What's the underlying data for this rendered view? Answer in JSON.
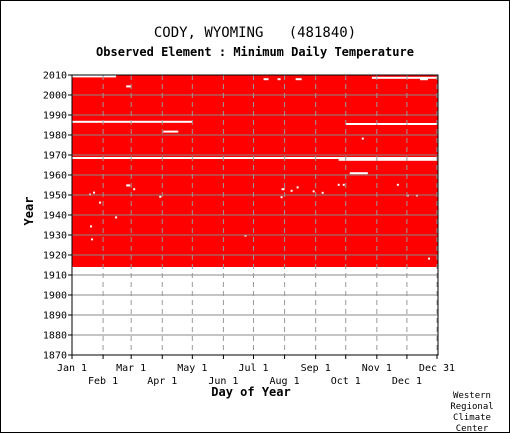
{
  "chart_data": {
    "type": "heatmap",
    "title": "CODY, WYOMING   (481840)",
    "subtitle": "Observed Element : Minimum Daily Temperature",
    "xlabel": "Day of Year",
    "ylabel": "Year",
    "xlim": [
      1,
      366
    ],
    "ylim": [
      1870,
      2010
    ],
    "y_ticks": [
      1870,
      1880,
      1890,
      1900,
      1910,
      1920,
      1930,
      1940,
      1950,
      1960,
      1970,
      1980,
      1990,
      2000,
      2010
    ],
    "x_ticks_top_row": [
      {
        "label": "Jan 1",
        "day": 1
      },
      {
        "label": "Mar 1",
        "day": 60
      },
      {
        "label": "May 1",
        "day": 121
      },
      {
        "label": "Jul 1",
        "day": 182
      },
      {
        "label": "Sep 1",
        "day": 244
      },
      {
        "label": "Nov 1",
        "day": 305
      },
      {
        "label": "Dec 31",
        "day": 365
      }
    ],
    "x_ticks_bottom_row": [
      {
        "label": "Feb 1",
        "day": 32
      },
      {
        "label": "Apr 1",
        "day": 91
      },
      {
        "label": "Jun 1",
        "day": 152
      },
      {
        "label": "Aug 1",
        "day": 213
      },
      {
        "label": "Oct 1",
        "day": 274
      },
      {
        "label": "Dec 1",
        "day": 335
      }
    ],
    "grid": true,
    "data_color": "#ff0000",
    "observed_year_range": [
      1914,
      2010
    ],
    "missing_full_lines": [
      {
        "year": 1968.5,
        "day_start": 1,
        "day_end": 366
      },
      {
        "year": 1986.6,
        "day_start": 1,
        "day_end": 121
      },
      {
        "year": 1985.5,
        "day_start": 274,
        "day_end": 366
      },
      {
        "year": 1967.6,
        "day_start": 267,
        "day_end": 366
      }
    ],
    "missing_segments": [
      {
        "year": 2009.3,
        "day_start": 1,
        "day_end": 45
      },
      {
        "year": 2008.6,
        "day_start": 300,
        "day_end": 366
      },
      {
        "year": 2004.3,
        "day_start": 55,
        "day_end": 60
      },
      {
        "year": 1981.7,
        "day_start": 92,
        "day_end": 107
      },
      {
        "year": 1960.9,
        "day_start": 278,
        "day_end": 296
      },
      {
        "year": 2007.9,
        "day_start": 192,
        "day_end": 197
      },
      {
        "year": 2007.9,
        "day_start": 206,
        "day_end": 209
      },
      {
        "year": 2007.9,
        "day_start": 224,
        "day_end": 230
      },
      {
        "year": 2007.9,
        "day_start": 348,
        "day_end": 356
      }
    ],
    "missing_points": [
      {
        "year": 1954.8,
        "day": 55
      },
      {
        "year": 1954.8,
        "day": 56
      },
      {
        "year": 1954.8,
        "day": 57
      },
      {
        "year": 1952.9,
        "day": 62
      },
      {
        "year": 1951.2,
        "day": 22
      },
      {
        "year": 1946.2,
        "day": 28
      },
      {
        "year": 1934.3,
        "day": 19
      },
      {
        "year": 1927.8,
        "day": 20
      },
      {
        "year": 1949.1,
        "day": 88
      },
      {
        "year": 1929.7,
        "day": 173
      },
      {
        "year": 1948.9,
        "day": 209
      },
      {
        "year": 1952.9,
        "day": 210
      },
      {
        "year": 1952.9,
        "day": 211
      },
      {
        "year": 1952.1,
        "day": 219
      },
      {
        "year": 1953.8,
        "day": 225
      },
      {
        "year": 1951.8,
        "day": 241
      },
      {
        "year": 1951.1,
        "day": 250
      },
      {
        "year": 1955.1,
        "day": 266
      },
      {
        "year": 1955.1,
        "day": 271
      },
      {
        "year": 1978.2,
        "day": 290
      },
      {
        "year": 1955.1,
        "day": 325
      },
      {
        "year": 1949.8,
        "day": 335
      },
      {
        "year": 1949.8,
        "day": 344
      },
      {
        "year": 1918.2,
        "day": 356
      },
      {
        "year": 1950.2,
        "day": 18
      },
      {
        "year": 1938.8,
        "day": 44
      }
    ]
  },
  "credit": [
    "Western",
    "Regional",
    "Climate",
    "Center"
  ]
}
